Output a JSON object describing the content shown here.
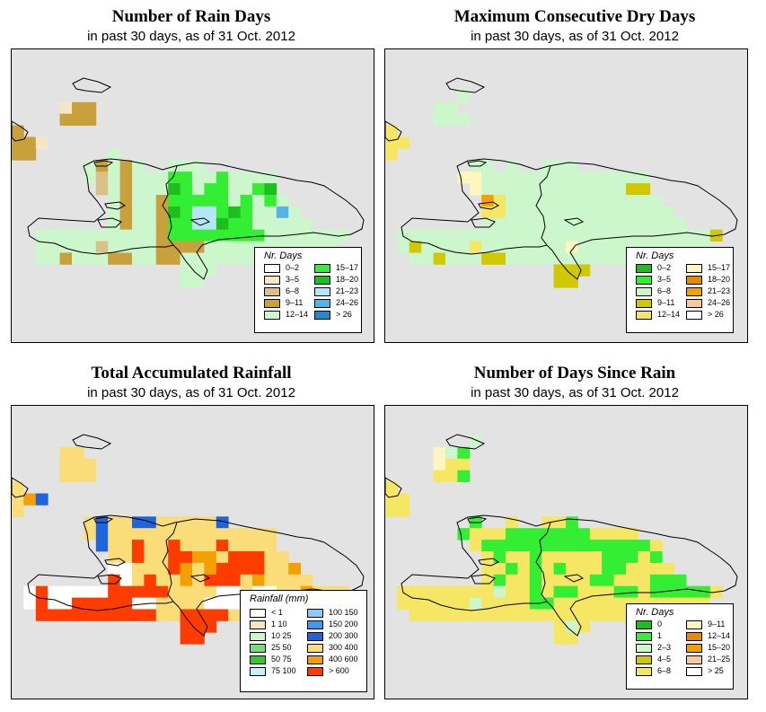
{
  "panels": [
    {
      "title": "Number of Rain Days",
      "subtitle": "in past 30 days, as of  31 Oct. 2012",
      "grid": [
        ". . . . . . . . . . . . . . . . . . . . . . . . . . . . . .",
        ". . . . . . . . . . . . . . . . . . . . . . . . . . . . . .",
        ". . . . 1 3 3 . . . . . . . . . . . . . . . . . . . . . . .",
        ". . . . 3 3 3 . . . . . . . . . . . . . . . . . . . . . . .",
        "3 . . . . . . . . . . . . . . . . . . . . . . . . . . . . .",
        "3 3 1 . . . . . . . . . . . . . . . . . . . . . . . . . . .",
        "3 3 . . . . . . 4 . . . . . . . . . . . . . . . . . . . . .",
        ". . . . . . 4 3 4 3 4 . . 4 4 4 . . . . . . . . . . . . . .",
        ". . . . . . 4 2 4 3 4 4 4 5 5 4 4 5 4 4 4 4 . . . . . . . .",
        ". . . . . . . 2 4 3 4 4 4 6 5 4 5 5 4 4 5 6 . . . . . . . .",
        ". . . . . . . . 4 3 4 4 3 5 5 5 5 5 4 5 4 5 4 . . . . . . .",
        ". . . . . . . . 4 3 4 4 3 6 5 7 7 5 6 5 4 4 8 4 . . . . . .",
        ". . . . . . . . 4 3 4 4 3 5 5 7 7 6 5 5 4 4 4 4 4 . . . . .",
        ". . 4 4 4 4 4 4 4 4 4 4 3 5 5 5 5 5 5 5 5 4 4 4 4 4 4 4 . .",
        ". . 4 4 4 4 4 2 4 4 4 4 3 3 3 3 4 4 4 4 4 4 4 4 4 4 4 . . .",
        ". . 4 4 3 4 4 4 3 3 4 4 3 3 4 4 4 4 4 4 4 4 4 . . . . . . .",
        ". . . . . . . . . . . . . . 4 4 4 . . . . . . . . . . . . .",
        ". . . . . . . . . . . . . . 4 4 . . . . . . . . . . . . . .",
        ". . . . . . . . . . . . . . . . . . . . . . . . . . . . . .",
        ". . . . . . . . . . . . . . . . . . . . . . . . . . . . . ."
      ],
      "legend": {
        "title": "Nr. Days",
        "columns": [
          [
            {
              "label": "0–2",
              "color": "#ffffff"
            },
            {
              "label": "3–5",
              "color": "#f5e6c8"
            },
            {
              "label": "6–8",
              "color": "#dcc08a"
            },
            {
              "label": "9–11",
              "color": "#c8a03c"
            },
            {
              "label": "12–14",
              "color": "#ccf6cc"
            }
          ],
          [
            {
              "label": "15–17",
              "color": "#33ee33"
            },
            {
              "label": "18–20",
              "color": "#1ebe1e"
            },
            {
              "label": "21–23",
              "color": "#b4e6f5"
            },
            {
              "label": "24–26",
              "color": "#55b4e6"
            },
            {
              "label": "> 26",
              "color": "#1e8cc8"
            }
          ]
        ]
      }
    },
    {
      "title": "Maximum Consecutive Dry Days",
      "subtitle": "in past 30 days, as of  31 Oct. 2012",
      "grid": [
        ". . . . . . . . . . . . . . . . . . . . . . . . . . . . . .",
        ". . . . . . 2 . . . . . . . . . . . . . . . . . . . . . . .",
        ". . . . 2 2 . . . . . . . . . . . . . . . . . . . . . . . .",
        ". . . . 2 2 2 . . . . . . . . . . . . . . . . . . . . . . .",
        "4 . . . . . . . . . . . . . . . . . . . . . . . . . . . . .",
        "4 4 . . . . . . . . . . . . . . . . . . . . . . . . . . . .",
        "4 . . . . . . . . . . . . . . . . . . . . . . . . . . . . .",
        ". . . . . . . 2 2 . 2 . . 2 2 2 . . . . . . . . . . . . . .",
        ". . . . . . 5 5 2 2 2 2 2 2 2 2 2 2 2 2 2 2 . . . . . . . .",
        ". . . . . . . 5 2 2 2 2 2 2 2 2 2 2 2 2 3 3 . . . . . . . .",
        ". . . . . . . . 7 4 2 2 2 2 2 2 2 2 2 2 2 2 2 . . . . . . .",
        ". . . . . . . . 4 4 2 2 2 2 2 2 2 2 2 2 2 2 2 2 . . . . . .",
        ". . . . . . . . 2 2 2 2 2 2 2 2 2 2 2 2 2 2 2 2 2 . . . . .",
        ". 2 2 2 2 2 2 2 2 2 2 2 2 2 2 2 2 2 2 2 2 2 2 2 2 2 2 3 . .",
        ". 2 3 2 2 2 2 4 2 2 2 2 2 2 2 5 2 2 2 2 2 2 2 2 2 2 2 . . .",
        ". . 2 2 3 2 2 2 3 3 2 2 2 2 2 2 2 2 2 2 2 2 2 . . . . . . .",
        ". . . . . . . . . . . . . . 3 3 3 . . . . . . . . . . . . .",
        ". . . . . . . . . . . . . . 3 3 . . . . . . . . . . . . . .",
        ". . . . . . . . . . . . . . . . . . . . . . . . . . . . . .",
        ". . . . . . . . . . . . . . . . . . . . . . . . . . . . . ."
      ],
      "legend": {
        "title": "Nr. Days",
        "columns": [
          [
            {
              "label": "0–2",
              "color": "#1ebe1e"
            },
            {
              "label": "3–5",
              "color": "#33ee33"
            },
            {
              "label": "6–8",
              "color": "#ccf6cc"
            },
            {
              "label": "9–11",
              "color": "#d2c800"
            },
            {
              "label": "12–14",
              "color": "#f5e664"
            }
          ],
          [
            {
              "label": "15–17",
              "color": "#fff5be"
            },
            {
              "label": "18–20",
              "color": "#e68c00"
            },
            {
              "label": "21–23",
              "color": "#f5a000"
            },
            {
              "label": "24–26",
              "color": "#fac8a0"
            },
            {
              "label": "> 26",
              "color": "#ffffff"
            }
          ]
        ]
      }
    },
    {
      "title": "Total Accumulated Rainfall",
      "subtitle": "in past 30 days, as of  31 Oct. 2012",
      "grid": [
        ". . . . . . . . . . . . . . . . . . . . . . . . . . . . . .",
        ". . . . 9 9 . . . . . . . . . . . . . . . . . . . . . . . .",
        ". . . . 9 9 9 . . . . . . . . . . . . . . . . . . . . . . .",
        ". . . . 9 9 9 . . . . . . . . . . . . . . . . . . . . . . .",
        "9 . . . . . . . . . . . . . . . . . . . . . . . . . . . . .",
        "9 10 8 . . . . . . . . . . . . . . . . . . . . . . . . . . .",
        "9 . . . . . . . . . . . . . . . . . . . . . . . . . . . . .",
        ". . . . . . 9 8 9 9 8 8 9 9 9 9 9 8 . . . . . . . . . . . .",
        ". . . . . . 9 8 9 9 9 9 9 9 9 9 9 9 9 9 9 9 . . . . . . . .",
        ". . . . . . . 8 9 9 11 9 9 11 9 9 9 11 9 9 9 9 . . . . . . .",
        ". . . . . . . . 9 9 11 9 9 11 11 10 10 9 11 11 11 9 9 . . . . . .",
        ". . . . . . . . 12 12 9 9 9 11 10 9 10 11 11 11 11 9 9 10 . . . . .",
        ". . . . . . . . 11 12 9 11 9 9 10 9 11 11 11 9 10 9 9 9 9 . . . .",
        ". 12 11 12 12 12 12 12 11 11 11 11 11 9 9 9 9 12 12 9 12 12 9 9 10 9 9 9 . .",
        ". 12 11 12 12 11 11 11 11 11 12 12 9 9 9 9 12 12 12 11 12 12 9 9 9 9 9 . . .",
        ". . 11 11 11 11 11 11 11 11 11 11 9 9 11 11 11 11 9 9 9 9 9 . . . . . . .",
        ". . . . . . . . . . . . . . 11 11 11 . . . . . . . . . . . . .",
        ". . . . . . . . . . . . . . 11 11 . . . . . . . . . . . . . .",
        ". . . . . . . . . . . . . . . . . . . . . . . . . . . . . .",
        ". . . . . . . . . . . . . . . . . . . . . . . . . . . . . ."
      ],
      "legend": {
        "title": "Rainfall (mm)",
        "columns": [
          [
            {
              "label": "< 1",
              "color": "#ffffff"
            },
            {
              "label": "1    10",
              "color": "#f5e6c8"
            },
            {
              "label": "10    25",
              "color": "#ccf6cc"
            },
            {
              "label": "25    50",
              "color": "#78dc78"
            },
            {
              "label": "50    75",
              "color": "#32c832"
            },
            {
              "label": "75  100",
              "color": "#c8f0fa"
            }
          ],
          [
            {
              "label": "100  150",
              "color": "#8cc8fa"
            },
            {
              "label": "150  200",
              "color": "#4696f0"
            },
            {
              "label": "200  300",
              "color": "#1e64dc"
            },
            {
              "label": "300  400",
              "color": "#fadc78"
            },
            {
              "label": "400  600",
              "color": "#f5a000"
            },
            {
              "label": "> 600",
              "color": "#ff3c00"
            }
          ]
        ]
      }
    },
    {
      "title": "Number of Days Since Rain",
      "subtitle": "in past 30 days, as of  31 Oct. 2012",
      "grid": [
        ". . . . . . . 2 . . . . . . . . . . . . . . . . . . . . . .",
        ". . . . 5 2 1 . . . . . . . . . . . . . . . . . . . . . . .",
        ". . . . 5 4 4 . . . . . . . . . . . . . . . . . . . . . . .",
        ". . . . 4 4 1 . . . . . . . . . . . . . . . . . . . . . . .",
        "4 . . . . . . . . . . . . . . . . . . . . . . . . . . . . .",
        "4 4 . . . . . . . . . . . . . . . . . . . . . . . . . . . .",
        "4 4 . . . . . . . . . . . . . . . . . . . . . . . . . . . .",
        ". . . . . . . 1 . . 4 . . 4 4 1 . . . . . . . . . . . . . .",
        ". . . . . . 1 4 4 4 1 1 1 1 1 1 1 4 4 4 4 . . . . . . . . .",
        ". . . . . . . 4 1 1 1 1 1 1 1 1 1 1 1 1 1 1 4 . . . . . . .",
        ". . . . . . . . 4 1 4 4 1 4 4 4 4 4 1 1 1 4 1 . . . . . . .",
        ". . . . . . . . 4 4 1 4 1 4 1 4 4 4 1 1 4 4 4 4 . . . . . .",
        ". . . . . . . . 4 1 4 4 1 4 4 4 4 1 1 4 4 4 1 1 1 . . . . .",
        ". 4 4 4 4 4 4 4 4 2 4 4 1 4 1 1 4 4 4 1 1 4 1 1 1 1 1 4 . .",
        ". 4 4 4 4 4 4 2 4 4 4 4 1 1 4 4 4 4 4 4 4 4 4 4 4 4 4 . . .",
        ". . 4 4 4 4 4 4 4 4 4 4 4 4 4 4 4 4 4 4 4 4 4 . . . . . . .",
        ". . . . . . . . . . . . . . 4 2 4 . . . . . . . . . . . . .",
        ". . . . . . . . . . . . . . 4 4 . . . . . . . . . . . . . .",
        ". . . . . . . . . . . . . . . . . . . . . . . . . . . . . .",
        ". . . . . . . . . . . . . . . . . . . . . . . . . . . . . ."
      ],
      "legend": {
        "title": "Nr. Days",
        "columns": [
          [
            {
              "label": "0",
              "color": "#1ebe1e"
            },
            {
              "label": "1",
              "color": "#33ee33"
            },
            {
              "label": "2–3",
              "color": "#ccf6cc"
            },
            {
              "label": "4–5",
              "color": "#d2c800"
            },
            {
              "label": "6–8",
              "color": "#f5e664"
            }
          ],
          [
            {
              "label": "9–11",
              "color": "#fff5be"
            },
            {
              "label": "12–14",
              "color": "#e68c00"
            },
            {
              "label": "15–20",
              "color": "#f5a000"
            },
            {
              "label": "21–25",
              "color": "#fac8a0"
            },
            {
              "label": "> 25",
              "color": "#ffffff"
            }
          ]
        ]
      }
    }
  ]
}
